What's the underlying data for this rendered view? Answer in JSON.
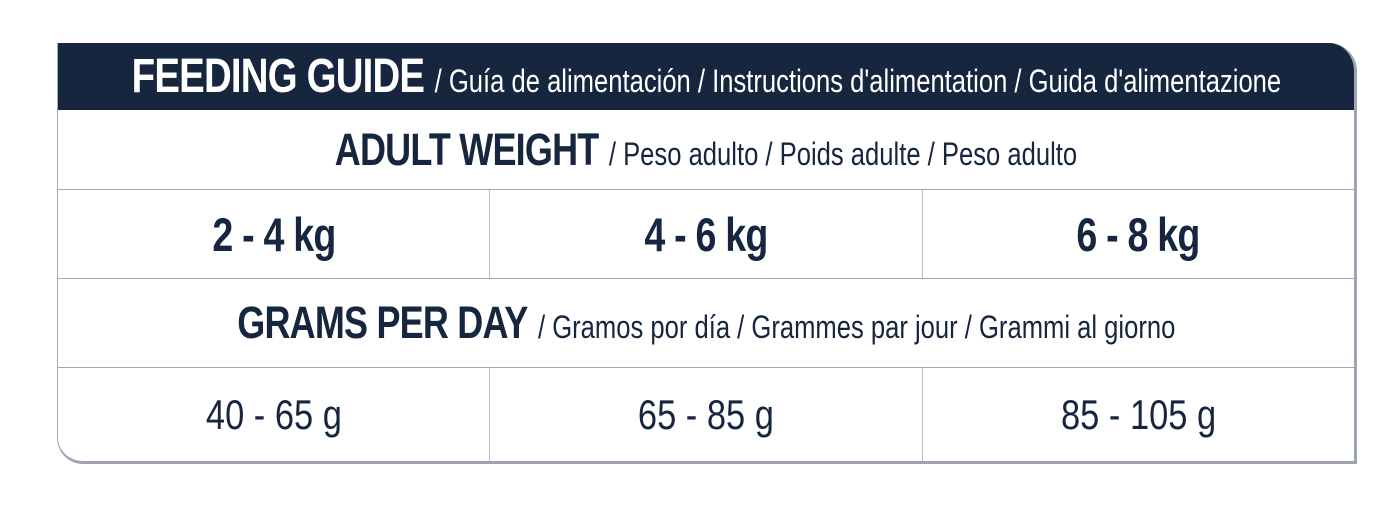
{
  "colors": {
    "navy": "#16263F",
    "header_text": "#FFFFFF",
    "grid_line": "#9EA7B5",
    "column_divider": "#B5BCC6",
    "outer_border": "#9CA4B1"
  },
  "header": {
    "title": "FEEDING GUIDE",
    "subtitle": "/ Guía de alimentación / Instructions d'alimentation / Guida d'alimentazione"
  },
  "adult_weight": {
    "title": "ADULT WEIGHT",
    "subtitle": "/ Peso adulto / Poids adulte / Peso adulto"
  },
  "weight_ranges": [
    "2 - 4 kg",
    "4 - 6 kg",
    "6 - 8 kg"
  ],
  "grams_per_day": {
    "title": "GRAMS PER DAY",
    "subtitle": "/ Gramos por día / Grammes par jour / Grammi al giorno"
  },
  "gram_ranges": [
    "40 - 65 g",
    "65 - 85 g",
    "85 - 105 g"
  ]
}
